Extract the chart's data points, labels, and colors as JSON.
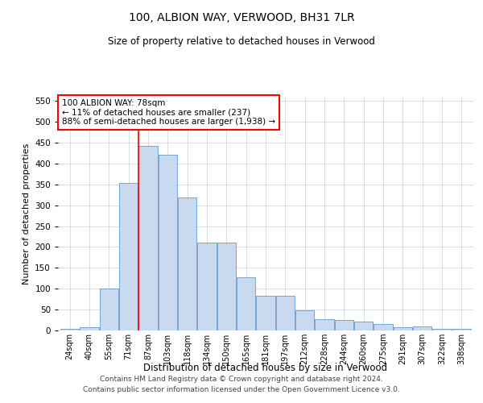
{
  "title": "100, ALBION WAY, VERWOOD, BH31 7LR",
  "subtitle": "Size of property relative to detached houses in Verwood",
  "xlabel": "Distribution of detached houses by size in Verwood",
  "ylabel": "Number of detached properties",
  "categories": [
    "24sqm",
    "40sqm",
    "55sqm",
    "71sqm",
    "87sqm",
    "103sqm",
    "118sqm",
    "134sqm",
    "150sqm",
    "165sqm",
    "181sqm",
    "197sqm",
    "212sqm",
    "228sqm",
    "244sqm",
    "260sqm",
    "275sqm",
    "291sqm",
    "307sqm",
    "322sqm",
    "338sqm"
  ],
  "bar_values": [
    3,
    8,
    100,
    353,
    443,
    421,
    319,
    210,
    210,
    128,
    83,
    83,
    48,
    28,
    25,
    21,
    15,
    8,
    10,
    4,
    3
  ],
  "bar_color": "#c8d9f0",
  "bar_edge_color": "#6699cc",
  "vline_color": "red",
  "vline_x_index": 3.5,
  "annotation_text": "100 ALBION WAY: 78sqm\n← 11% of detached houses are smaller (237)\n88% of semi-detached houses are larger (1,938) →",
  "annotation_box_color": "#ffffff",
  "annotation_box_edge_color": "red",
  "ylim": [
    0,
    560
  ],
  "yticks": [
    0,
    50,
    100,
    150,
    200,
    250,
    300,
    350,
    400,
    450,
    500,
    550
  ],
  "footer1": "Contains HM Land Registry data © Crown copyright and database right 2024.",
  "footer2": "Contains public sector information licensed under the Open Government Licence v3.0.",
  "bg_color": "#ffffff",
  "grid_color": "#d0d8e8"
}
